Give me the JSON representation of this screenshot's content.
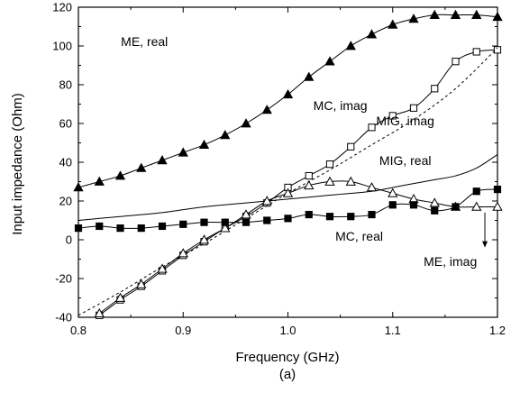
{
  "chart_data": {
    "type": "line",
    "title": "",
    "caption": "(a)",
    "xlabel": "Frequency (GHz)",
    "ylabel": "Input impedance (Ohm)",
    "xlim": [
      0.8,
      1.2
    ],
    "ylim": [
      -40,
      120
    ],
    "xticks": [
      "0.8",
      "0.9",
      "1.0",
      "1.1",
      "1.2"
    ],
    "yticks": [
      "-40",
      "-20",
      "0",
      "20",
      "40",
      "60",
      "80",
      "100",
      "120"
    ],
    "grid": false,
    "legend": "none",
    "series": [
      {
        "name": "ME, real",
        "style": "solid",
        "marker": "filled-triangle",
        "x": [
          0.8,
          0.82,
          0.84,
          0.86,
          0.88,
          0.9,
          0.92,
          0.94,
          0.96,
          0.98,
          1.0,
          1.02,
          1.04,
          1.06,
          1.08,
          1.1,
          1.12,
          1.14,
          1.16,
          1.18,
          1.2
        ],
        "y": [
          27,
          30,
          33,
          37,
          41,
          45,
          49,
          54,
          60,
          67,
          75,
          84,
          92,
          100,
          106,
          111,
          114,
          116,
          116,
          116,
          115
        ]
      },
      {
        "name": "MC, imag",
        "style": "solid",
        "marker": "open-square",
        "x": [
          0.82,
          0.84,
          0.86,
          0.88,
          0.9,
          0.92,
          0.94,
          0.96,
          0.98,
          1.0,
          1.02,
          1.04,
          1.06,
          1.08,
          1.1,
          1.12,
          1.14,
          1.16,
          1.18,
          1.2
        ],
        "y": [
          -39,
          -31,
          -24,
          -16,
          -8,
          -1,
          6,
          12,
          19,
          27,
          33,
          39,
          48,
          58,
          64,
          68,
          78,
          92,
          97,
          98
        ]
      },
      {
        "name": "MIG, imag",
        "style": "dashed",
        "marker": "none",
        "x": [
          0.8,
          0.84,
          0.88,
          0.92,
          0.96,
          1.0,
          1.04,
          1.08,
          1.12,
          1.16,
          1.2
        ],
        "y": [
          -39,
          -27,
          -14,
          -2,
          11,
          24,
          36,
          49,
          62,
          78,
          99
        ]
      },
      {
        "name": "MIG, real",
        "style": "solid",
        "marker": "none",
        "x": [
          0.8,
          0.84,
          0.88,
          0.92,
          0.96,
          1.0,
          1.04,
          1.08,
          1.1,
          1.12,
          1.14,
          1.16,
          1.18,
          1.2
        ],
        "y": [
          10,
          12,
          14,
          17,
          19,
          21,
          23,
          25,
          27,
          29,
          31,
          33,
          37,
          44
        ]
      },
      {
        "name": "ME, imag",
        "style": "solid",
        "marker": "open-triangle",
        "x": [
          0.82,
          0.84,
          0.86,
          0.88,
          0.9,
          0.92,
          0.94,
          0.96,
          0.98,
          1.0,
          1.02,
          1.04,
          1.06,
          1.08,
          1.1,
          1.12,
          1.14,
          1.16,
          1.18,
          1.2
        ],
        "y": [
          -38,
          -30,
          -23,
          -15,
          -7,
          0,
          6,
          13,
          20,
          24,
          28,
          30,
          30,
          27,
          24,
          21,
          19,
          17,
          17,
          17
        ]
      },
      {
        "name": "MC, real",
        "style": "solid",
        "marker": "filled-square",
        "x": [
          0.8,
          0.82,
          0.84,
          0.86,
          0.88,
          0.9,
          0.92,
          0.94,
          0.96,
          0.98,
          1.0,
          1.02,
          1.04,
          1.06,
          1.08,
          1.1,
          1.12,
          1.14,
          1.16,
          1.18,
          1.2
        ],
        "y": [
          6,
          7,
          6,
          6,
          7,
          8,
          9,
          9,
          9,
          10,
          11,
          13,
          12,
          12,
          13,
          18,
          18,
          15,
          17,
          25,
          26
        ]
      }
    ],
    "annotations": [
      {
        "text": "ME, real",
        "x": 0.863,
        "y": 100
      },
      {
        "text": "MC, imag",
        "x": 1.05,
        "y": 67
      },
      {
        "text": "MIG, imag",
        "x": 1.112,
        "y": 59
      },
      {
        "text": "MIG, real",
        "x": 1.112,
        "y": 38.5
      },
      {
        "text": "MC, real",
        "x": 1.068,
        "y": -0.5
      },
      {
        "text": "ME, imag",
        "x": 1.155,
        "y": -13.5
      }
    ],
    "arrow": {
      "from": [
        1.188,
        14
      ],
      "to": [
        1.188,
        -4
      ]
    }
  }
}
